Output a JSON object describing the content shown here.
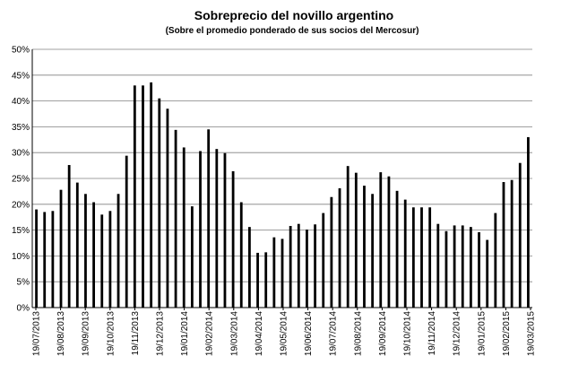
{
  "chart_data": {
    "type": "bar",
    "title": "Sobreprecio del novillo argentino",
    "subtitle": "(Sobre el promedio ponderado de sus socios del Mercosur)",
    "xlabel": "",
    "ylabel": "",
    "ylim": [
      0,
      50
    ],
    "y_ticks": [
      "0%",
      "5%",
      "10%",
      "15%",
      "20%",
      "25%",
      "30%",
      "35%",
      "40%",
      "45%",
      "50%"
    ],
    "x_ticks": [
      "19/07/2013",
      "19/08/2013",
      "19/09/2013",
      "19/10/2013",
      "19/11/2013",
      "19/12/2013",
      "19/01/2014",
      "19/02/2014",
      "19/03/2014",
      "19/04/2014",
      "19/05/2014",
      "19/06/2014",
      "19/07/2014",
      "19/08/2014",
      "19/09/2014",
      "19/10/2014",
      "19/11/2014",
      "19/12/2014",
      "19/01/2015",
      "19/02/2015",
      "19/03/2015"
    ],
    "grid": true,
    "legend": "none",
    "bar_color": "#000000",
    "grid_color": "#808080",
    "values": [
      19,
      18.5,
      18.7,
      22.8,
      27.6,
      24.2,
      22,
      20.4,
      18,
      18.7,
      22,
      29.4,
      43,
      43,
      43.6,
      40.5,
      38.5,
      34.4,
      31,
      19.6,
      30.3,
      34.5,
      30.7,
      29.9,
      26.4,
      20.4,
      15.6,
      10.6,
      10.7,
      13.6,
      13.3,
      15.8,
      16.2,
      15.1,
      16.1,
      18.3,
      21.4,
      23.1,
      27.4,
      26.1,
      23.6,
      22,
      26.2,
      25.4,
      22.6,
      20.9,
      19.4,
      19.4,
      19.4,
      16.2,
      14.8,
      15.9,
      15.9,
      15.6,
      14.6,
      13.1,
      18.3,
      24.3,
      24.7,
      28,
      33
    ]
  }
}
